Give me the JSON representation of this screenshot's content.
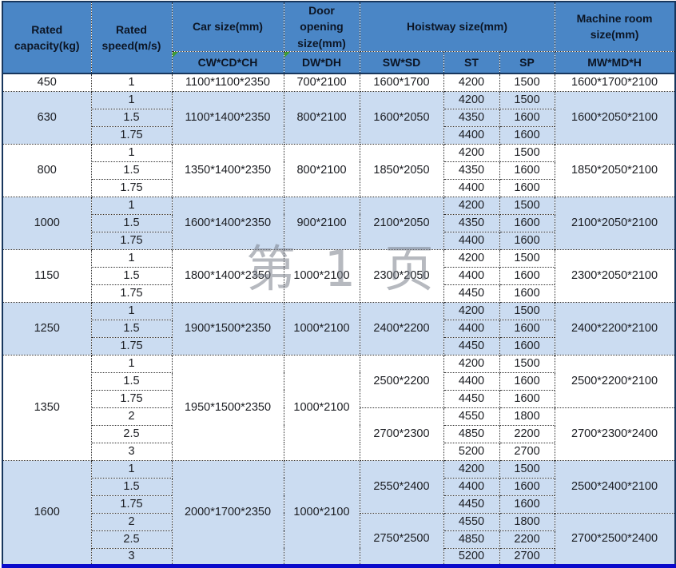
{
  "watermark": {
    "text": "第 1 页"
  },
  "icons": {
    "corner_flag": "green-corner-triangle"
  },
  "colors": {
    "header_bg": "#4a86c6",
    "row_blue": "#cbdcf1",
    "row_white": "#ffffff",
    "frame": "#17365d",
    "bottom_bar": "#0a0acb",
    "header_text": "#0c1524",
    "cell_text": "#1b1d22",
    "flag": "#3f9c35"
  },
  "header": {
    "capacity": "Rated capacity(kg)",
    "speed": "Rated speed(m/s)",
    "car": "Car size(mm)",
    "door": "Door opening size(mm)",
    "hoistway": "Hoistway size(mm)",
    "machine": "Machine room size(mm)",
    "sub_car": "CW*CD*CH",
    "sub_door": "DW*DH",
    "sub_swsd": "SW*SD",
    "sub_st": "ST",
    "sub_sp": "SP",
    "sub_machine": "MW*MD*H"
  },
  "table": {
    "groups": [
      {
        "capacity": "450",
        "car": "1100*1100*2350",
        "door": "700*2100",
        "rows": [
          {
            "speed": "1",
            "st": "4200",
            "sp": "1500"
          }
        ],
        "hoistway": [
          {
            "swsd": "1600*1700",
            "machine": "1600*1700*2100",
            "start": 0,
            "len": 1
          }
        ]
      },
      {
        "capacity": "630",
        "car": "1100*1400*2350",
        "door": "800*2100",
        "rows": [
          {
            "speed": "1",
            "st": "4200",
            "sp": "1500"
          },
          {
            "speed": "1.5",
            "st": "4350",
            "sp": "1600"
          },
          {
            "speed": "1.75",
            "st": "4400",
            "sp": "1600"
          }
        ],
        "hoistway": [
          {
            "swsd": "1600*2050",
            "machine": "1600*2050*2100",
            "start": 0,
            "len": 3
          }
        ]
      },
      {
        "capacity": "800",
        "car": "1350*1400*2350",
        "door": "800*2100",
        "rows": [
          {
            "speed": "1",
            "st": "4200",
            "sp": "1500"
          },
          {
            "speed": "1.5",
            "st": "4350",
            "sp": "1600"
          },
          {
            "speed": "1.75",
            "st": "4400",
            "sp": "1600"
          }
        ],
        "hoistway": [
          {
            "swsd": "1850*2050",
            "machine": "1850*2050*2100",
            "start": 0,
            "len": 3
          }
        ]
      },
      {
        "capacity": "1000",
        "car": "1600*1400*2350",
        "door": "900*2100",
        "rows": [
          {
            "speed": "1",
            "st": "4200",
            "sp": "1500"
          },
          {
            "speed": "1.5",
            "st": "4350",
            "sp": "1600"
          },
          {
            "speed": "1.75",
            "st": "4400",
            "sp": "1600"
          }
        ],
        "hoistway": [
          {
            "swsd": "2100*2050",
            "machine": "2100*2050*2100",
            "start": 0,
            "len": 3
          }
        ]
      },
      {
        "capacity": "1150",
        "car": "1800*1400*2350",
        "door": "1000*2100",
        "rows": [
          {
            "speed": "1",
            "st": "4200",
            "sp": "1500"
          },
          {
            "speed": "1.5",
            "st": "4400",
            "sp": "1600"
          },
          {
            "speed": "1.75",
            "st": "4450",
            "sp": "1600"
          }
        ],
        "hoistway": [
          {
            "swsd": "2300*2050",
            "machine": "2300*2050*2100",
            "start": 0,
            "len": 3
          }
        ]
      },
      {
        "capacity": "1250",
        "car": "1900*1500*2350",
        "door": "1000*2100",
        "rows": [
          {
            "speed": "1",
            "st": "4200",
            "sp": "1500"
          },
          {
            "speed": "1.5",
            "st": "4400",
            "sp": "1600"
          },
          {
            "speed": "1.75",
            "st": "4450",
            "sp": "1600"
          }
        ],
        "hoistway": [
          {
            "swsd": "2400*2200",
            "machine": "2400*2200*2100",
            "start": 0,
            "len": 3
          }
        ]
      },
      {
        "capacity": "1350",
        "car": "1950*1500*2350",
        "door": "1000*2100",
        "rows": [
          {
            "speed": "1",
            "st": "4200",
            "sp": "1500"
          },
          {
            "speed": "1.5",
            "st": "4400",
            "sp": "1600"
          },
          {
            "speed": "1.75",
            "st": "4450",
            "sp": "1600"
          },
          {
            "speed": "2",
            "st": "4550",
            "sp": "1800"
          },
          {
            "speed": "2.5",
            "st": "4850",
            "sp": "2200"
          },
          {
            "speed": "3",
            "st": "5200",
            "sp": "2700"
          }
        ],
        "hoistway": [
          {
            "swsd": "2500*2200",
            "machine": "2500*2200*2100",
            "start": 0,
            "len": 3
          },
          {
            "swsd": "2700*2300",
            "machine": "2700*2300*2400",
            "start": 3,
            "len": 3
          }
        ]
      },
      {
        "capacity": "1600",
        "car": "2000*1700*2350",
        "door": "1000*2100",
        "rows": [
          {
            "speed": "1",
            "st": "4200",
            "sp": "1500"
          },
          {
            "speed": "1.5",
            "st": "4400",
            "sp": "1600"
          },
          {
            "speed": "1.75",
            "st": "4450",
            "sp": "1600"
          },
          {
            "speed": "2",
            "st": "4550",
            "sp": "1800"
          },
          {
            "speed": "2.5",
            "st": "4850",
            "sp": "2200"
          },
          {
            "speed": "3",
            "st": "5200",
            "sp": "2700"
          }
        ],
        "hoistway": [
          {
            "swsd": "2550*2400",
            "machine": "2500*2400*2100",
            "start": 0,
            "len": 3
          },
          {
            "swsd": "2750*2500",
            "machine": "2700*2500*2400",
            "start": 3,
            "len": 3
          }
        ]
      }
    ]
  }
}
